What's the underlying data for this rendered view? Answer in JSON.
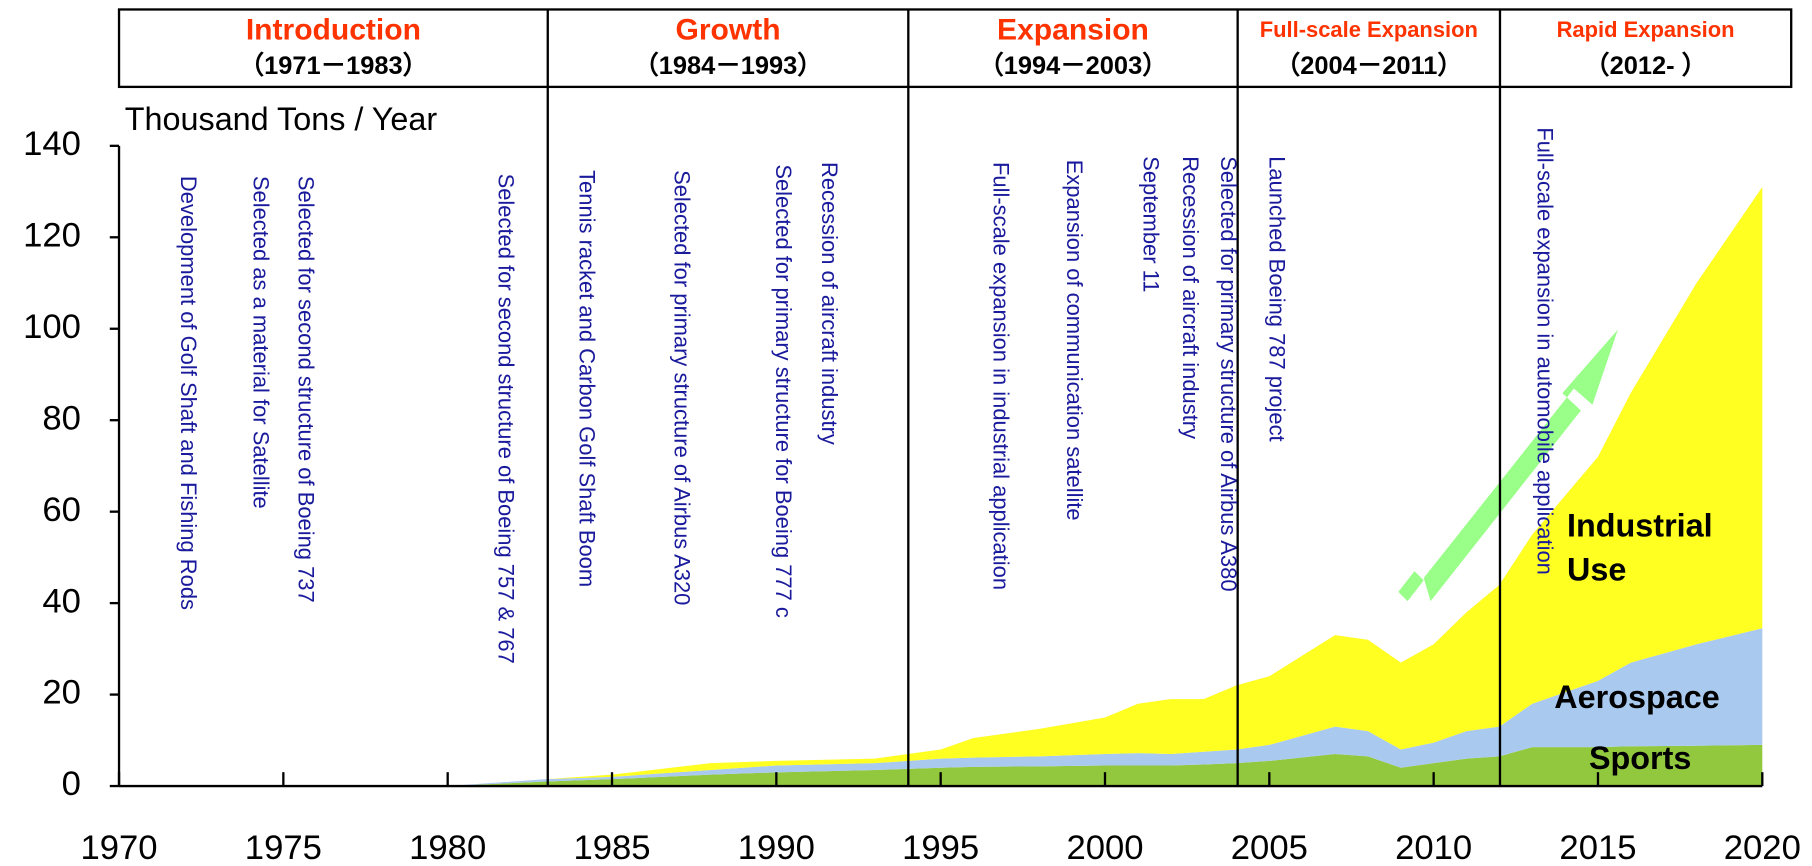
{
  "chart_data": {
    "type": "area",
    "stacked": true,
    "ylabel": "Thousand Tons / Year",
    "phases": [
      {
        "name": "Introduction",
        "range": "（1971－1983）"
      },
      {
        "name": "Growth",
        "range": "（1984－1993）"
      },
      {
        "name": "Expansion",
        "range": "（1994－2003）"
      },
      {
        "name": "Full-scale  Expansion",
        "range": "（2004－2011）"
      },
      {
        "name": "Rapid Expansion",
        "range": "（2012- ）"
      }
    ],
    "annotations": [
      "Development of Golf Shaft and Fishing Rods",
      "Selected as a material for Satellite",
      "Selected for second structure of Boeing 737",
      "Selected for second structure of Boeing 757 & 767",
      "Tennis racket and Carbon Golf Shaft Boom",
      "Selected for primary structure of  Airbus A320",
      "Selected for primary structure for Boeing 777  c",
      "Recession of aircraft industry",
      "Full-scale expansion in industrial application",
      "Expansion of communication satellite",
      "September 11",
      "Recession of aircraft industry",
      "Selected for primary structure of Airbus A380",
      "Launched Boeing 787 project",
      "Full-scale expansion in automobile application"
    ],
    "x": [
      1980,
      1983,
      1985,
      1988,
      1990,
      1993,
      1995,
      1996,
      1998,
      2000,
      2001,
      2002,
      2003,
      2004,
      2005,
      2007,
      2008,
      2009,
      2010,
      2011,
      2012,
      2013,
      2015,
      2016,
      2018,
      2020
    ],
    "series": [
      {
        "name": "Sports",
        "color": "#92c83e",
        "values": [
          0,
          1,
          1.5,
          2.5,
          3,
          3.5,
          4,
          4.2,
          4.3,
          4.5,
          4.5,
          4.5,
          4.7,
          5,
          5.5,
          7,
          6.5,
          4,
          5,
          6,
          6.5,
          8.5,
          8.5,
          8.7,
          8.8,
          9
        ]
      },
      {
        "name": "Aerospace",
        "color": "#a9c9ee",
        "values": [
          0,
          0.5,
          0.5,
          1,
          1.5,
          1.5,
          2,
          2,
          2.2,
          2.5,
          2.7,
          2.5,
          2.8,
          3,
          3.5,
          6,
          5.5,
          4,
          4.5,
          6,
          6.5,
          9.5,
          14.5,
          18.3,
          22.2,
          25.5
        ]
      },
      {
        "name": "Industrial Use",
        "color": "#ffff22",
        "values": [
          0,
          0,
          0.5,
          1.5,
          1,
          1,
          2,
          4.3,
          6,
          8,
          10.8,
          12,
          11.5,
          14,
          15,
          20,
          20,
          19,
          21.5,
          26,
          31,
          37,
          49,
          59,
          79,
          96.5
        ]
      }
    ],
    "xlim": [
      1970,
      2020
    ],
    "xticks": [
      1970,
      1975,
      1980,
      1985,
      1990,
      1995,
      2000,
      2005,
      2010,
      2015,
      2020
    ],
    "ylim": [
      0,
      140
    ],
    "yticks": [
      0,
      20,
      40,
      60,
      80,
      100,
      120,
      140
    ]
  }
}
